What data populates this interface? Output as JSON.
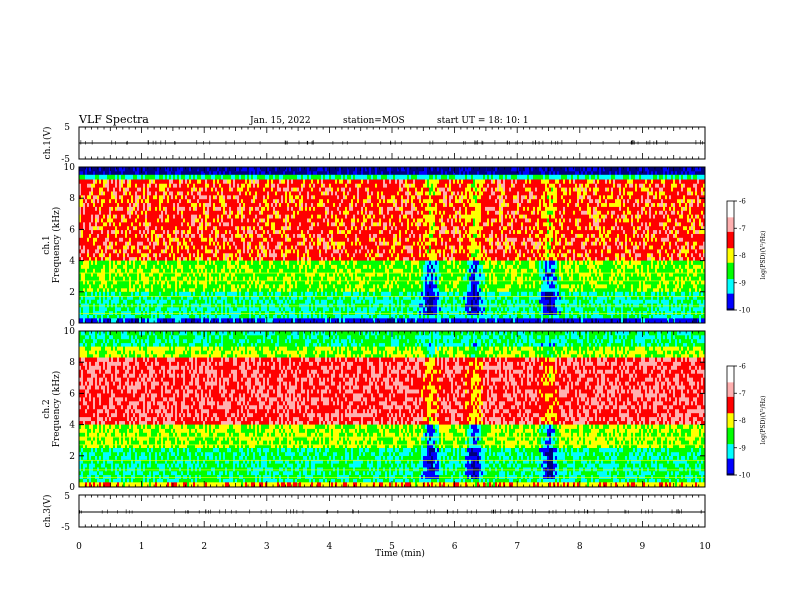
{
  "header": {
    "title": "VLF Spectra",
    "date": "Jan. 15, 2022",
    "station": "station=MOS",
    "start": "start  UT =   18: 10: 1"
  },
  "chart_data": [
    {
      "type": "line",
      "name": "ch.1 waveform",
      "ylabel": "ch.1(V)",
      "ylim": [
        -5,
        5
      ],
      "yticks": [
        "5",
        "-5"
      ],
      "xlim": [
        0,
        10
      ],
      "x": [
        0,
        10
      ],
      "values": [
        0,
        0
      ]
    },
    {
      "type": "heatmap",
      "name": "ch.1 spectrogram",
      "ylabel": "ch.1\nFrequency (kHz)",
      "xlim": [
        0,
        10
      ],
      "ylim": [
        0,
        10
      ],
      "yticks": [
        "0",
        "2",
        "4",
        "6",
        "8",
        "10"
      ],
      "colorbar": {
        "label": "log(PSD)(V²/Hz)",
        "range": [
          -10,
          -6
        ],
        "ticks": [
          "-6",
          "-7",
          "-8",
          "-9",
          "-10"
        ]
      },
      "bands_khz": {
        "top_deep_blue": [
          9.5,
          10
        ],
        "hot_band": [
          4,
          9.2
        ],
        "mid_band": [
          2,
          4
        ],
        "low_band": [
          0.3,
          2
        ]
      },
      "dropout_minutes": [
        5.6,
        6.3,
        7.5
      ]
    },
    {
      "type": "heatmap",
      "name": "ch.2 spectrogram",
      "ylabel": "ch.2\nFrequency (kHz)",
      "xlim": [
        0,
        10
      ],
      "ylim": [
        0,
        10
      ],
      "yticks": [
        "0",
        "2",
        "4",
        "6",
        "8",
        "10"
      ],
      "colorbar": {
        "label": "log(PSD)(V²/Hz)",
        "range": [
          -10,
          -6
        ],
        "ticks": [
          "-6",
          "-7",
          "-8",
          "-9",
          "-10"
        ]
      },
      "bands_khz": {
        "top_green": [
          8.3,
          10
        ],
        "hot_band": [
          4,
          8.3
        ],
        "mid_band": [
          2,
          4
        ],
        "low_band": [
          0.3,
          2
        ]
      },
      "dropout_minutes": [
        5.6,
        6.3,
        7.5
      ]
    },
    {
      "type": "line",
      "name": "ch.3 waveform",
      "ylabel": "ch.3(V)",
      "ylim": [
        -5,
        5
      ],
      "yticks": [
        "5",
        "-5"
      ],
      "xlim": [
        0,
        10
      ],
      "x": [
        0,
        10
      ],
      "values": [
        0,
        0
      ]
    }
  ],
  "xaxis": {
    "label": "Time (min)",
    "ticks": [
      "0",
      "1",
      "2",
      "3",
      "4",
      "5",
      "6",
      "7",
      "8",
      "9",
      "10"
    ]
  },
  "colors": {
    "deep_blue": "#00007a",
    "blue": "#0000ff",
    "cyan": "#00ffff",
    "green": "#00ff00",
    "yellow": "#ffff00",
    "red": "#ff0000",
    "pink": "#ffb0b0",
    "white": "#ffffff"
  }
}
